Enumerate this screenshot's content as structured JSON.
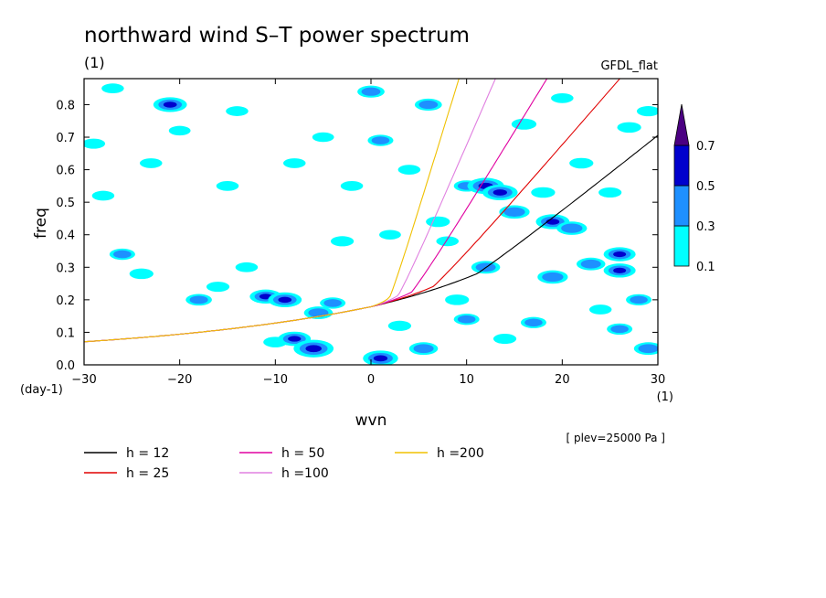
{
  "chart_data": {
    "type": "heatmap",
    "title": "northward wind S–T power spectrum",
    "unit_label": "(1)",
    "model_label": "GFDL_flat",
    "xlabel": "wvn",
    "ylabel": "freq",
    "x_unit": "(1)",
    "y_unit": "(day-1)",
    "plev_note": "[ plev=25000 Pa ]",
    "xlim": [
      -30,
      30
    ],
    "ylim": [
      0,
      0.88
    ],
    "xticks": [
      -30,
      -20,
      -10,
      0,
      10,
      20,
      30
    ],
    "xtick_labels": [
      "−30",
      "−20",
      "−10",
      "0",
      "10",
      "20",
      "30"
    ],
    "yticks": [
      0.0,
      0.1,
      0.2,
      0.3,
      0.4,
      0.5,
      0.6,
      0.7,
      0.8
    ],
    "ytick_labels": [
      "0.0",
      "0.1",
      "0.2",
      "0.3",
      "0.4",
      "0.5",
      "0.6",
      "0.7",
      "0.8"
    ],
    "colorbar": {
      "levels": [
        0.1,
        0.3,
        0.5,
        0.7
      ],
      "labels": [
        "0.1",
        "0.3",
        "0.5",
        "0.7"
      ],
      "colors": [
        "#00ffff",
        "#1e90ff",
        "#0000cd",
        "#4b0082"
      ]
    },
    "dispersion_curves": [
      {
        "label": "h = 12",
        "h": 12,
        "color": "#000000"
      },
      {
        "label": "h = 25",
        "h": 25,
        "color": "#e00000"
      },
      {
        "label": "h = 50",
        "h": 50,
        "color": "#e000a0"
      },
      {
        "label": "h =100",
        "h": 100,
        "color": "#e080e0"
      },
      {
        "label": "h =200",
        "h": 200,
        "color": "#f0c000"
      }
    ],
    "blobs": [
      {
        "x": -26.0,
        "y": 0.34,
        "v": 0.3
      },
      {
        "x": -24.0,
        "y": 0.28,
        "v": 0.25
      },
      {
        "x": -23.0,
        "y": 0.62,
        "v": 0.2
      },
      {
        "x": -21.0,
        "y": 0.8,
        "v": 0.55
      },
      {
        "x": -18.0,
        "y": 0.2,
        "v": 0.32
      },
      {
        "x": -16.0,
        "y": 0.24,
        "v": 0.22
      },
      {
        "x": -15.0,
        "y": 0.55,
        "v": 0.2
      },
      {
        "x": -13.0,
        "y": 0.3,
        "v": 0.2
      },
      {
        "x": -11.0,
        "y": 0.21,
        "v": 0.5
      },
      {
        "x": -9.0,
        "y": 0.2,
        "v": 0.55
      },
      {
        "x": -10.0,
        "y": 0.07,
        "v": 0.25
      },
      {
        "x": -8.0,
        "y": 0.08,
        "v": 0.52
      },
      {
        "x": -6.0,
        "y": 0.05,
        "v": 0.75
      },
      {
        "x": -5.5,
        "y": 0.16,
        "v": 0.4
      },
      {
        "x": -4.0,
        "y": 0.19,
        "v": 0.3
      },
      {
        "x": -3.0,
        "y": 0.38,
        "v": 0.22
      },
      {
        "x": -28.0,
        "y": 0.52,
        "v": 0.2
      },
      {
        "x": -29.0,
        "y": 0.68,
        "v": 0.22
      },
      {
        "x": -27.0,
        "y": 0.85,
        "v": 0.2
      },
      {
        "x": -20.0,
        "y": 0.72,
        "v": 0.18
      },
      {
        "x": -14.0,
        "y": 0.78,
        "v": 0.2
      },
      {
        "x": -8.0,
        "y": 0.62,
        "v": 0.2
      },
      {
        "x": -5.0,
        "y": 0.7,
        "v": 0.18
      },
      {
        "x": -2.0,
        "y": 0.55,
        "v": 0.2
      },
      {
        "x": 0.0,
        "y": 0.84,
        "v": 0.35
      },
      {
        "x": 1.0,
        "y": 0.69,
        "v": 0.3
      },
      {
        "x": 1.0,
        "y": 0.02,
        "v": 0.6
      },
      {
        "x": 5.5,
        "y": 0.05,
        "v": 0.4
      },
      {
        "x": 3.0,
        "y": 0.12,
        "v": 0.22
      },
      {
        "x": 6.0,
        "y": 0.8,
        "v": 0.35
      },
      {
        "x": 7.0,
        "y": 0.44,
        "v": 0.25
      },
      {
        "x": 4.0,
        "y": 0.6,
        "v": 0.2
      },
      {
        "x": 9.0,
        "y": 0.2,
        "v": 0.25
      },
      {
        "x": 10.0,
        "y": 0.55,
        "v": 0.3
      },
      {
        "x": 12.0,
        "y": 0.55,
        "v": 0.65
      },
      {
        "x": 13.5,
        "y": 0.53,
        "v": 0.6
      },
      {
        "x": 15.0,
        "y": 0.47,
        "v": 0.45
      },
      {
        "x": 12.0,
        "y": 0.3,
        "v": 0.4
      },
      {
        "x": 10.0,
        "y": 0.14,
        "v": 0.3
      },
      {
        "x": 14.0,
        "y": 0.08,
        "v": 0.22
      },
      {
        "x": 17.0,
        "y": 0.13,
        "v": 0.3
      },
      {
        "x": 16.0,
        "y": 0.74,
        "v": 0.28
      },
      {
        "x": 18.0,
        "y": 0.53,
        "v": 0.25
      },
      {
        "x": 19.0,
        "y": 0.44,
        "v": 0.55
      },
      {
        "x": 21.0,
        "y": 0.42,
        "v": 0.45
      },
      {
        "x": 19.0,
        "y": 0.27,
        "v": 0.45
      },
      {
        "x": 23.0,
        "y": 0.31,
        "v": 0.4
      },
      {
        "x": 26.0,
        "y": 0.34,
        "v": 0.5
      },
      {
        "x": 26.0,
        "y": 0.29,
        "v": 0.5
      },
      {
        "x": 28.0,
        "y": 0.2,
        "v": 0.3
      },
      {
        "x": 26.0,
        "y": 0.11,
        "v": 0.3
      },
      {
        "x": 29.0,
        "y": 0.05,
        "v": 0.4
      },
      {
        "x": 22.0,
        "y": 0.62,
        "v": 0.25
      },
      {
        "x": 25.0,
        "y": 0.53,
        "v": 0.22
      },
      {
        "x": 27.0,
        "y": 0.73,
        "v": 0.25
      },
      {
        "x": 20.0,
        "y": 0.82,
        "v": 0.2
      },
      {
        "x": 29.0,
        "y": 0.78,
        "v": 0.22
      },
      {
        "x": 24.0,
        "y": 0.17,
        "v": 0.2
      },
      {
        "x": 8.0,
        "y": 0.38,
        "v": 0.2
      },
      {
        "x": 2.0,
        "y": 0.4,
        "v": 0.18
      }
    ]
  }
}
